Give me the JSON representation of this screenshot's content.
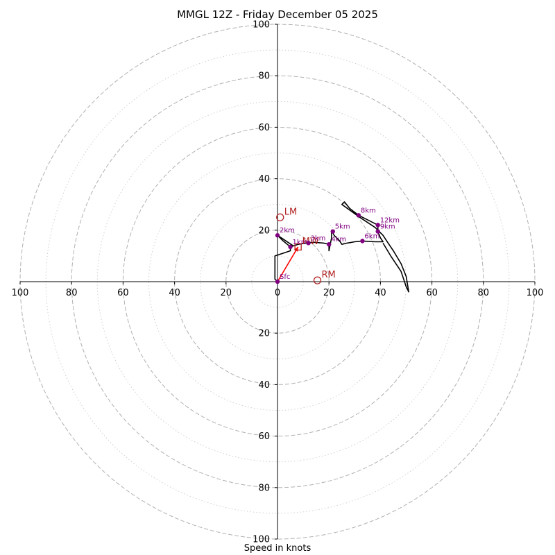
{
  "chart_data": {
    "type": "hodograph",
    "title": "MMGL 12Z - Friday December 05 2025",
    "xlabel": "Speed in knots",
    "max_speed": 100,
    "major_rings": [
      20,
      40,
      60,
      80,
      100
    ],
    "minor_rings": [
      10,
      30,
      50,
      70,
      90
    ],
    "x_ticks": [
      -100,
      -80,
      -60,
      -40,
      -20,
      0,
      20,
      40,
      60,
      80,
      100
    ],
    "x_tick_labels": [
      "100",
      "80",
      "60",
      "40",
      "20",
      "0",
      "20",
      "40",
      "60",
      "80",
      "100"
    ],
    "y_ticks": [
      -100,
      -80,
      -60,
      -40,
      -20,
      20,
      40,
      60,
      80,
      100
    ],
    "y_tick_labels": [
      "100",
      "80",
      "60",
      "40",
      "20",
      "20",
      "40",
      "60",
      "80",
      "100"
    ],
    "hodograph_line": {
      "color": "#000000",
      "points": [
        [
          0,
          0
        ],
        [
          -1,
          1
        ],
        [
          -1,
          3
        ],
        [
          -1,
          6
        ],
        [
          -1,
          10
        ],
        [
          2,
          11
        ],
        [
          5,
          12
        ],
        [
          5,
          14
        ],
        [
          6,
          14
        ],
        [
          0,
          18
        ],
        [
          2,
          16
        ],
        [
          5,
          13.5
        ],
        [
          8,
          14.5
        ],
        [
          11,
          15
        ],
        [
          14,
          15.3
        ],
        [
          18,
          15
        ],
        [
          20,
          14.5
        ],
        [
          20,
          12
        ],
        [
          21,
          17
        ],
        [
          21,
          20
        ],
        [
          22,
          18
        ],
        [
          24,
          16
        ],
        [
          25,
          14.5
        ],
        [
          27,
          15
        ],
        [
          30,
          15.5
        ],
        [
          33,
          15.8
        ],
        [
          38,
          15.5
        ],
        [
          41,
          15.5
        ],
        [
          40,
          17
        ],
        [
          39,
          19.5
        ],
        [
          39,
          22
        ],
        [
          37,
          23
        ],
        [
          31.5,
          25.8
        ],
        [
          28,
          28.5
        ],
        [
          26,
          31
        ],
        [
          25,
          30
        ],
        [
          32,
          25
        ],
        [
          38,
          21
        ],
        [
          41,
          18
        ],
        [
          43,
          15
        ],
        [
          45,
          12
        ],
        [
          48,
          7
        ],
        [
          50,
          2
        ],
        [
          51,
          -4
        ],
        [
          50,
          -2
        ],
        [
          48,
          4
        ],
        [
          44,
          10
        ],
        [
          41,
          15
        ]
      ]
    },
    "heights": [
      {
        "label": "Sfc",
        "u": 0,
        "v": 0
      },
      {
        "label": "1km",
        "u": 5,
        "v": 13.5
      },
      {
        "label": "2km",
        "u": 0,
        "v": 18
      },
      {
        "label": "3km",
        "u": 12,
        "v": 15
      },
      {
        "label": "4km",
        "u": 20,
        "v": 14.5
      },
      {
        "label": "5km",
        "u": 21.5,
        "v": 19.5
      },
      {
        "label": "6km",
        "u": 33,
        "v": 15.8
      },
      {
        "label": "8km",
        "u": 31.5,
        "v": 25.8
      },
      {
        "label": "9km",
        "u": 39,
        "v": 19.5
      },
      {
        "label": "12km",
        "u": 39,
        "v": 22
      }
    ],
    "height_color": "#800080",
    "motion_color": "#b22222",
    "motions": [
      {
        "label": "LM",
        "u": 1,
        "v": 25,
        "marker": "circle"
      },
      {
        "label": "RM",
        "u": 15.5,
        "v": 0.5,
        "marker": "circle"
      },
      {
        "label": "MW",
        "u": 8,
        "v": 13.5,
        "marker": "square"
      }
    ],
    "shear_arrow": {
      "color": "#ff0000",
      "from_u": 0,
      "from_v": 0,
      "to_u": 8,
      "to_v": 13.5
    }
  }
}
